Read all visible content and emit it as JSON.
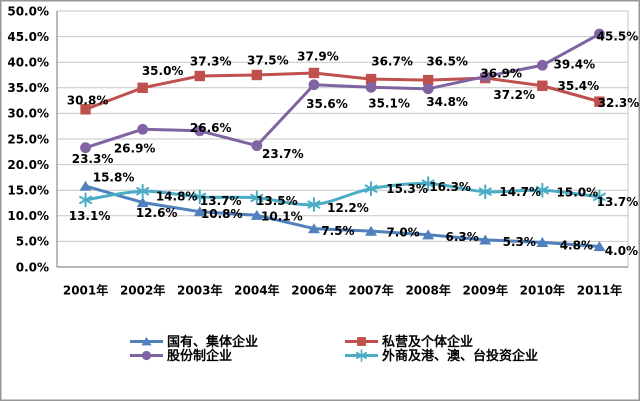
{
  "chart_data": {
    "type": "line",
    "title": "",
    "categories": [
      "2001年",
      "2002年",
      "2003年",
      "2004年",
      "2006年",
      "2007年",
      "2008年",
      "2009年",
      "2010年",
      "2011年"
    ],
    "xlabel": "",
    "ylabel": "",
    "ylim": [
      0,
      50
    ],
    "grid": true,
    "legend_position": "bottom",
    "legend_rows": [
      [
        0,
        1
      ],
      [
        2,
        3
      ]
    ],
    "value_suffix": "%",
    "value_decimals": 1,
    "y_axis": {
      "min": 0,
      "max": 50,
      "step": 5,
      "tick_labels": [
        "0.0%",
        "5.0%",
        "10.0%",
        "15.0%",
        "20.0%",
        "25.0%",
        "30.0%",
        "35.0%",
        "40.0%",
        "45.0%",
        "50.0%"
      ]
    },
    "series": [
      {
        "name": "国有、集体企业",
        "color": "#4F81BD",
        "marker": "triangle",
        "smooth": false,
        "values": [
          15.8,
          12.6,
          10.8,
          10.1,
          7.5,
          7.0,
          6.3,
          5.3,
          4.8,
          4.0
        ],
        "label_offsets": [
          [
            28,
            -9
          ],
          [
            14,
            10
          ],
          [
            22,
            2
          ],
          [
            25,
            1
          ],
          [
            24,
            2
          ],
          [
            32,
            1
          ],
          [
            34,
            2
          ],
          [
            34,
            2
          ],
          [
            34,
            3
          ],
          [
            22,
            4
          ]
        ]
      },
      {
        "name": "私营及个体企业",
        "color": "#C0504D",
        "marker": "square",
        "smooth": false,
        "values": [
          30.8,
          35.0,
          37.3,
          37.5,
          37.9,
          36.7,
          36.5,
          36.9,
          35.4,
          32.3
        ],
        "label_offsets": [
          [
            2,
            -9
          ],
          [
            20,
            -17
          ],
          [
            11,
            -15
          ],
          [
            11,
            -15
          ],
          [
            4,
            -17
          ],
          [
            21,
            -18
          ],
          [
            19,
            -19
          ],
          [
            16,
            -5
          ],
          [
            36,
            0
          ],
          [
            19,
            1
          ]
        ]
      },
      {
        "name": "股份制企业",
        "color": "#8064A2",
        "marker": "circle",
        "smooth": false,
        "values": [
          23.3,
          26.9,
          26.6,
          23.7,
          35.6,
          35.1,
          34.8,
          37.2,
          39.4,
          45.5
        ],
        "label_offsets": [
          [
            7,
            11
          ],
          [
            -8,
            19
          ],
          [
            11,
            -3
          ],
          [
            26,
            8
          ],
          [
            13,
            19
          ],
          [
            18,
            16
          ],
          [
            19,
            13
          ],
          [
            29,
            18
          ],
          [
            32,
            -1
          ],
          [
            18,
            2
          ]
        ]
      },
      {
        "name": "外商及港、澳、台投资企业",
        "color": "#4BACC6",
        "marker": "star",
        "smooth": true,
        "values": [
          13.1,
          14.8,
          13.7,
          13.5,
          12.2,
          15.3,
          16.3,
          14.7,
          15.0,
          13.7
        ],
        "label_offsets": [
          [
            4,
            16
          ],
          [
            34,
            5
          ],
          [
            21,
            4
          ],
          [
            20,
            3
          ],
          [
            34,
            3
          ],
          [
            36,
            0
          ],
          [
            22,
            3
          ],
          [
            35,
            0
          ],
          [
            35,
            2
          ],
          [
            18,
            5
          ]
        ]
      }
    ]
  },
  "colors": {
    "grid": "#C6C6C6",
    "axis": "#8C8C8C",
    "frame": "#969696",
    "text": "#000000",
    "background": "#FFFFFF"
  }
}
